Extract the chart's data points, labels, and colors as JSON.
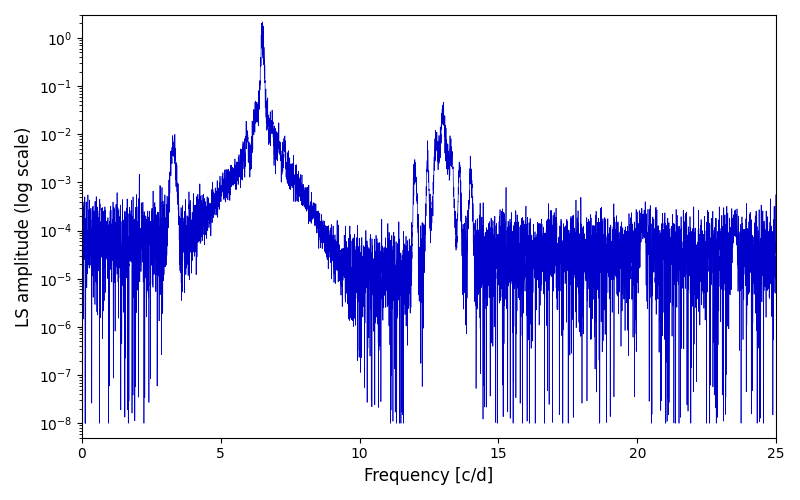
{
  "xlabel": "Frequency [c/d]",
  "ylabel": "LS amplitude (log scale)",
  "xlim": [
    0,
    25
  ],
  "ylim": [
    5e-09,
    3.0
  ],
  "line_color": "#0000CC",
  "line_width": 0.5,
  "background_color": "#ffffff",
  "freq_min": 0.0,
  "freq_max": 25.0,
  "n_points": 6000,
  "main_peak_freq": 6.5,
  "main_peak_amp": 1.0,
  "second_peak_freq": 13.0,
  "second_peak_amp": 0.02,
  "harmonic_peak_freq": 3.3,
  "harmonic_peak_amp": 0.005,
  "xticks": [
    0,
    5,
    10,
    15,
    20,
    25
  ],
  "noise_seed": 12345
}
